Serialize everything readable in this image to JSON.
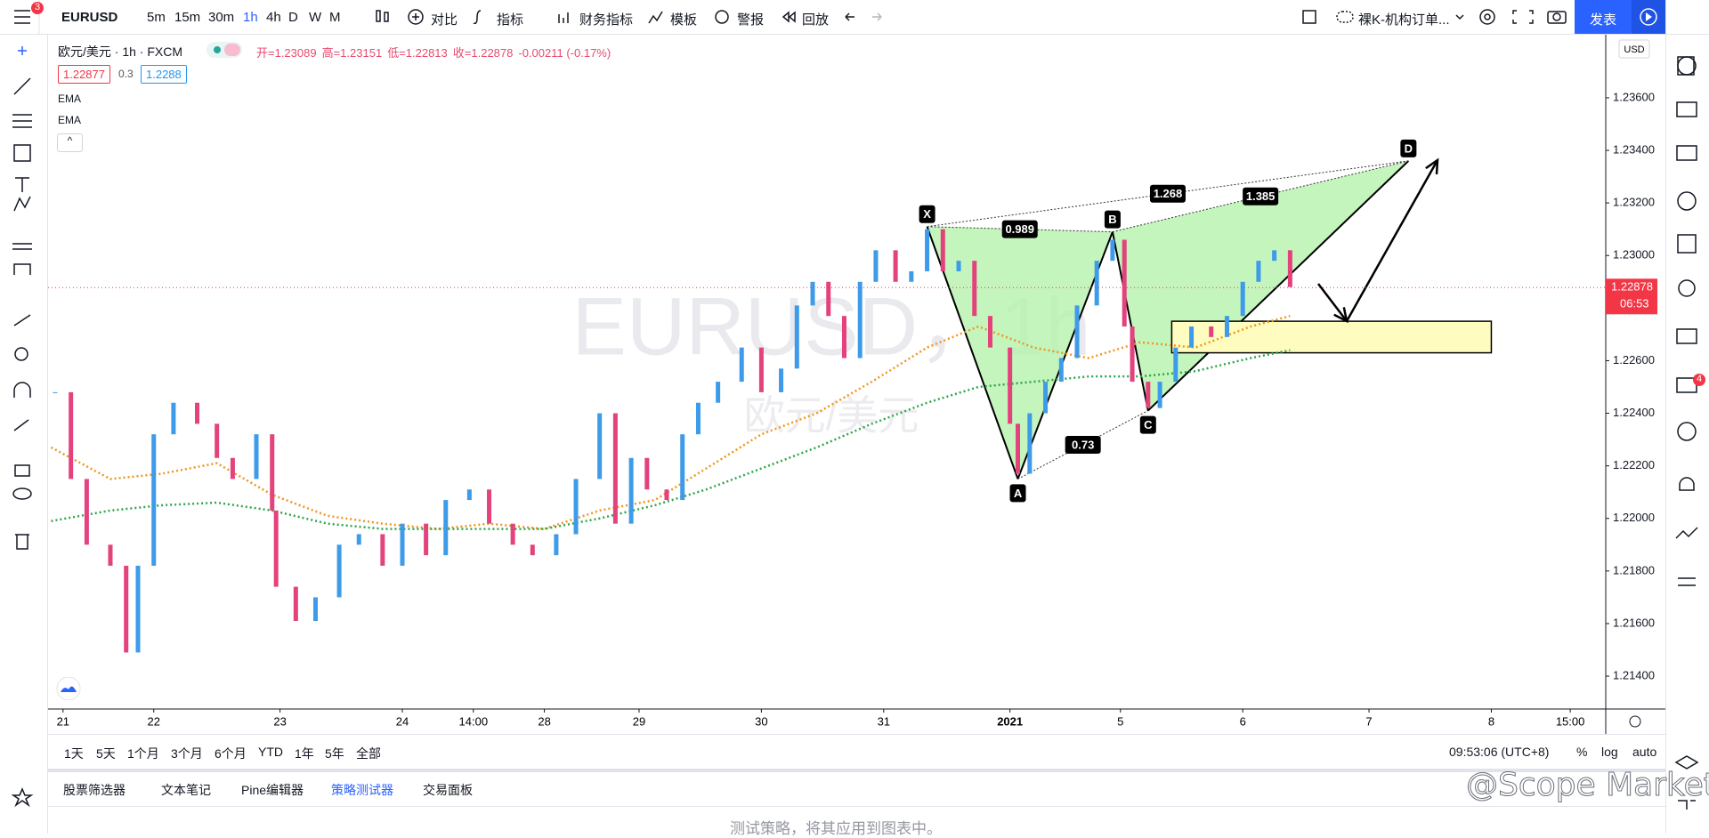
{
  "toolbar": {
    "symbol": "EURUSD",
    "badge": 3,
    "intervals": [
      "5m",
      "15m",
      "30m",
      "1h",
      "4h",
      "D",
      "W",
      "M"
    ],
    "active_interval": 3,
    "tools": [
      "对比",
      "指标",
      "财务指标",
      "模板",
      "警报",
      "回放"
    ],
    "layout": "裸K-机构订单...",
    "publish": "发表"
  },
  "legend": {
    "symbol": "欧元/美元 · 1h · FXCM",
    "ohlc": [
      "开=1.23089",
      "高=1.23151",
      "低=1.22813",
      "收=1.22878",
      "-0.00211 (-0.17%)"
    ],
    "bid": 1.22877,
    "spread": 0.3,
    "ask": 1.2288
  },
  "chart_data": {
    "type": "candlestick",
    "watermark": "EURUSD，1h",
    "watermark_sub": "欧元/美元",
    "up_color": "#3d9be9",
    "down_color": "#e3427c",
    "x": [
      1,
      5,
      9,
      15,
      19,
      22,
      26,
      31,
      37,
      42,
      46,
      52,
      56,
      57,
      62,
      67,
      73,
      78,
      84,
      89,
      95,
      100,
      106,
      111,
      117,
      122,
      128,
      133,
      139,
      143,
      147,
      151,
      156,
      160,
      164,
      169,
      175,
      180,
      185,
      189,
      193,
      197,
      201,
      205,
      209,
      214,
      218,
      222,
      226,
      230,
      234,
      238,
      243,
      245,
      248,
      252,
      256,
      260,
      265,
      269,
      272,
      274,
      278,
      281,
      285,
      289,
      294,
      298,
      302,
      306,
      310,
      314
    ],
    "close": [
      1.2248,
      1.2215,
      1.219,
      1.2182,
      1.2149,
      1.2182,
      1.2232,
      1.2244,
      1.2236,
      1.2223,
      1.2215,
      1.2232,
      1.2203,
      1.2174,
      1.2161,
      1.217,
      1.219,
      1.2194,
      1.2182,
      1.2198,
      1.2186,
      1.2207,
      1.2211,
      1.2198,
      1.219,
      1.2186,
      1.2194,
      1.2215,
      1.224,
      1.2198,
      1.2223,
      1.2211,
      1.2207,
      1.2232,
      1.2244,
      1.2252,
      1.2265,
      1.2248,
      1.2257,
      1.2281,
      1.229,
      1.2277,
      1.2261,
      1.229,
      1.2302,
      1.229,
      1.2294,
      1.231,
      1.2294,
      1.2298,
      1.2277,
      1.2265,
      1.2236,
      1.2217,
      1.224,
      1.2252,
      1.2261,
      1.2281,
      1.2298,
      1.2306,
      1.2273,
      1.2252,
      1.2242,
      1.2252,
      1.2265,
      1.2273,
      1.2269,
      1.2277,
      1.229,
      1.2298,
      1.2302,
      1.2288
    ],
    "series": [
      {
        "name": "EMA",
        "color": "#f0961e",
        "x": [
          0,
          15,
          28,
          42,
          56,
          70,
          84,
          98,
          111,
          125,
          139,
          153,
          166,
          180,
          194,
          208,
          222,
          235,
          249,
          263,
          276,
          290,
          304,
          314
        ],
        "values": [
          1.2227,
          1.2215,
          1.2217,
          1.2221,
          1.2209,
          1.2201,
          1.2198,
          1.2196,
          1.2198,
          1.2196,
          1.2203,
          1.2207,
          1.2219,
          1.2232,
          1.224,
          1.2252,
          1.2265,
          1.2273,
          1.2265,
          1.2261,
          1.2267,
          1.2265,
          1.2273,
          1.2277
        ]
      },
      {
        "name": "EMA",
        "color": "#2ea64a",
        "x": [
          0,
          15,
          28,
          42,
          56,
          70,
          84,
          98,
          111,
          125,
          139,
          153,
          166,
          180,
          194,
          208,
          222,
          235,
          249,
          263,
          276,
          290,
          304,
          314
        ],
        "values": [
          1.2199,
          1.2203,
          1.2205,
          1.2206,
          1.2203,
          1.2198,
          1.2196,
          1.2196,
          1.2196,
          1.2196,
          1.22,
          1.2205,
          1.2211,
          1.2219,
          1.2227,
          1.2236,
          1.2244,
          1.225,
          1.2252,
          1.2254,
          1.2254,
          1.2256,
          1.2261,
          1.2264
        ]
      }
    ],
    "xlim": [
      0,
      394
    ],
    "xticks": [
      {
        "value": 3,
        "label": "21"
      },
      {
        "value": 26,
        "label": "22"
      },
      {
        "value": 58,
        "label": "23"
      },
      {
        "value": 89,
        "label": "24"
      },
      {
        "value": 107,
        "label": "14:00"
      },
      {
        "value": 125,
        "label": "28"
      },
      {
        "value": 149,
        "label": "29"
      },
      {
        "value": 180,
        "label": "30"
      },
      {
        "value": 211,
        "label": "31"
      },
      {
        "value": 243,
        "label": "2021"
      },
      {
        "value": 271,
        "label": "5"
      },
      {
        "value": 302,
        "label": "6"
      },
      {
        "value": 334,
        "label": "7"
      },
      {
        "value": 365,
        "label": "8"
      },
      {
        "value": 385,
        "label": "15:00"
      }
    ],
    "ylim": [
      1.21275,
      1.2384
    ],
    "yticks": [
      {
        "value": 1.214,
        "label": "1.21400"
      },
      {
        "value": 1.216,
        "label": "1.21600"
      },
      {
        "value": 1.218,
        "label": "1.21800"
      },
      {
        "value": 1.22,
        "label": "1.22000"
      },
      {
        "value": 1.222,
        "label": "1.22200"
      },
      {
        "value": 1.224,
        "label": "1.22400"
      },
      {
        "value": 1.226,
        "label": "1.22600"
      },
      {
        "value": 1.228,
        "label": "1.22800"
      },
      {
        "value": 1.23,
        "label": "1.23000"
      },
      {
        "value": 1.232,
        "label": "1.23200"
      },
      {
        "value": 1.234,
        "label": "1.23400"
      },
      {
        "value": 1.236,
        "label": "1.23600"
      }
    ],
    "last_price": 1.22878,
    "countdown": "06:53",
    "last_color": "#f23645",
    "currency": "USD",
    "pattern": {
      "fill": "#b5f2ad",
      "points": [
        {
          "label": "X",
          "x": 222,
          "y": 1.2311
        },
        {
          "label": "A",
          "x": 245,
          "y": 1.2215
        },
        {
          "label": "B",
          "x": 269,
          "y": 1.2309
        },
        {
          "label": "C",
          "x": 278,
          "y": 1.2241
        },
        {
          "label": "D",
          "x": 344,
          "y": 1.2336
        }
      ],
      "ratios": [
        0.989,
        0.73,
        1.268,
        1.385
      ]
    },
    "zone": {
      "x": [
        284,
        365
      ],
      "y": [
        1.2263,
        1.2275
      ],
      "color": "#fffcc0"
    }
  },
  "range_bar": {
    "ranges": [
      "1天",
      "5天",
      "1个月",
      "3个月",
      "6个月",
      "YTD",
      "1年",
      "5年",
      "全部"
    ],
    "clock": "09:53:06 (UTC+8)",
    "options": [
      "%",
      "log",
      "auto"
    ]
  },
  "tabs": {
    "items": [
      "股票筛选器",
      "文本笔记",
      "Pine编辑器",
      "策略测试器",
      "交易面板"
    ],
    "active": 3
  },
  "footer": {
    "message": "测试策略，将其应用到图表中。",
    "watermark": "@Scope Markets",
    "alerts_badge": 4
  }
}
